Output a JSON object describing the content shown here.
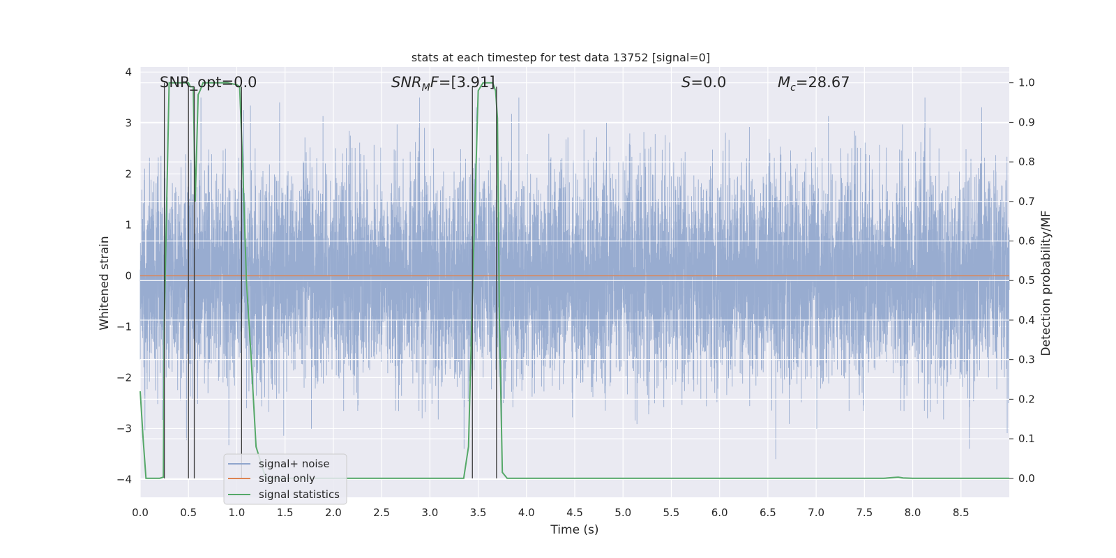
{
  "chart_data": {
    "type": "line",
    "title": "stats at each timestep for test data 13752 [signal=0]",
    "xlabel": "Time (s)",
    "ylabel": "Whitened strain",
    "y2label": "Detection probability/MF",
    "xlim": [
      0.0,
      9.0
    ],
    "ylim": [
      -4.35,
      4.1
    ],
    "y2lim": [
      -0.048,
      1.04
    ],
    "xticks": [
      "0.0",
      "0.5",
      "1.0",
      "1.5",
      "2.0",
      "2.5",
      "3.0",
      "3.5",
      "4.0",
      "4.5",
      "5.0",
      "5.5",
      "6.0",
      "6.5",
      "7.0",
      "7.5",
      "8.0",
      "8.5"
    ],
    "yticks": [
      "4",
      "3",
      "2",
      "1",
      "0",
      "−1",
      "−2",
      "−3",
      "−4"
    ],
    "y2ticks": [
      "1.0",
      "0.9",
      "0.8",
      "0.7",
      "0.6",
      "0.5",
      "0.4",
      "0.3",
      "0.2",
      "0.1",
      "0.0"
    ],
    "grid": true,
    "legend_position": "lower-left",
    "annotations": {
      "snr_opt": "SNR_opt=0.0",
      "snr_mf": "[3.91]",
      "s": "0.0",
      "mc": "28.67"
    },
    "series": [
      {
        "name": "signal+ noise",
        "axis": "left",
        "color": "#8fa5cc",
        "description": "whitened noisy strain, roughly within [-3.6, 3.5]",
        "sample_rate_hint": 1000
      },
      {
        "name": "signal only",
        "axis": "left",
        "color": "#dd8452",
        "x": [
          0.0,
          9.0
        ],
        "y": [
          0.0,
          0.0
        ]
      },
      {
        "name": "signal statistics",
        "axis": "right",
        "color": "#55a868",
        "x": [
          0.0,
          0.03,
          0.06,
          0.1,
          0.15,
          0.2,
          0.24,
          0.25,
          0.3,
          0.35,
          0.4,
          0.45,
          0.5,
          0.52,
          0.55,
          0.57,
          0.6,
          0.62,
          0.65,
          0.7,
          0.75,
          0.8,
          0.9,
          1.0,
          1.03,
          1.06,
          1.1,
          1.15,
          1.2,
          1.3,
          1.5,
          2.0,
          2.5,
          3.0,
          3.35,
          3.4,
          3.45,
          3.5,
          3.55,
          3.6,
          3.65,
          3.68,
          3.7,
          3.72,
          3.75,
          3.8,
          3.85,
          4.0,
          5.0,
          6.0,
          7.0,
          7.7,
          7.8,
          7.85,
          7.9,
          8.0,
          8.5,
          9.0
        ],
        "y": [
          0.22,
          0.1,
          0.0,
          0.0,
          0.0,
          0.0,
          0.003,
          0.4,
          1.0,
          1.0,
          1.0,
          1.0,
          1.0,
          0.99,
          0.99,
          0.7,
          0.97,
          0.98,
          1.0,
          1.0,
          1.0,
          1.0,
          1.0,
          0.995,
          0.99,
          0.8,
          0.5,
          0.3,
          0.08,
          0.0,
          0.0,
          0.0,
          0.0,
          0.0,
          0.0,
          0.08,
          0.55,
          0.98,
          1.0,
          1.0,
          1.0,
          0.98,
          0.91,
          0.4,
          0.015,
          0.0,
          0.0,
          0.0,
          0.0,
          0.0,
          0.0,
          0.0,
          0.002,
          0.003,
          0.001,
          0.0,
          0.0,
          0.0
        ]
      },
      {
        "name": "markers",
        "axis": "right",
        "color": "#3a3a3a",
        "vlines": [
          {
            "x": 0.25,
            "ymin": 0.0,
            "ymax": 1.0
          },
          {
            "x": 0.5,
            "ymin": 0.0,
            "ymax": 0.99
          },
          {
            "x": 0.56,
            "ymin": 0.0,
            "ymax": 0.99
          },
          {
            "x": 1.05,
            "ymin": 0.0,
            "ymax": 0.99
          },
          {
            "x": 3.44,
            "ymin": 0.0,
            "ymax": 0.99
          },
          {
            "x": 3.69,
            "ymin": 0.0,
            "ymax": 0.99
          }
        ],
        "hlines": [
          {
            "x0": 0.5,
            "x1": 0.56,
            "y": 0.99
          }
        ]
      }
    ]
  }
}
